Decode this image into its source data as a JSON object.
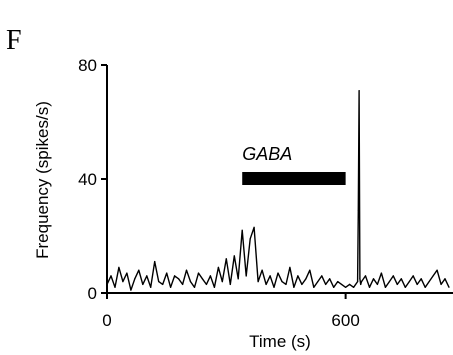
{
  "panel_label": "F",
  "chart_data": {
    "type": "line",
    "xlabel": "Time (s)",
    "ylabel": "Frequency (spikes/s)",
    "xlim": [
      0,
      870
    ],
    "ylim": [
      0,
      80
    ],
    "xticks": [
      0,
      600
    ],
    "yticks": [
      0,
      40,
      80
    ],
    "xtick_labels": [
      "0",
      "600"
    ],
    "ytick_labels": [
      "0",
      "40",
      "80"
    ],
    "grid": false,
    "legend": "none",
    "series": [
      {
        "x": [
          0,
          10,
          20,
          30,
          40,
          50,
          60,
          70,
          80,
          90,
          100,
          110,
          120,
          130,
          140,
          150,
          160,
          170,
          180,
          190,
          200,
          210,
          220,
          230,
          240,
          250,
          260,
          270,
          280,
          290,
          300,
          310,
          320,
          330,
          340,
          350,
          360,
          370,
          380,
          390,
          400,
          410,
          420,
          430,
          440,
          450,
          460,
          470,
          480,
          490,
          500,
          510,
          520,
          530,
          540,
          550,
          560,
          570,
          580,
          590,
          600,
          610,
          620,
          630,
          632,
          634,
          636,
          638,
          640,
          650,
          660,
          670,
          680,
          690,
          700,
          710,
          720,
          730,
          740,
          750,
          760,
          770,
          780,
          790,
          800,
          810,
          820,
          830,
          840,
          850,
          860
        ],
        "y": [
          3,
          6,
          2,
          9,
          4,
          7,
          1,
          5,
          8,
          3,
          6,
          2,
          11,
          4,
          3,
          7,
          2,
          6,
          5,
          3,
          8,
          4,
          2,
          7,
          5,
          3,
          6,
          2,
          9,
          4,
          12,
          3,
          13,
          5,
          22,
          6,
          19,
          23,
          4,
          8,
          3,
          6,
          2,
          7,
          4,
          3,
          9,
          2,
          6,
          3,
          5,
          8,
          2,
          4,
          6,
          3,
          5,
          2,
          4,
          3,
          2,
          3,
          2,
          4,
          29,
          71,
          5,
          3,
          4,
          6,
          2,
          5,
          3,
          7,
          2,
          4,
          6,
          3,
          5,
          2,
          4,
          6,
          3,
          5,
          2,
          4,
          6,
          8,
          3,
          5,
          2
        ]
      }
    ],
    "annotations": [
      {
        "text": "GABA",
        "x_start": 340,
        "x_end": 600,
        "y": 40
      }
    ]
  }
}
